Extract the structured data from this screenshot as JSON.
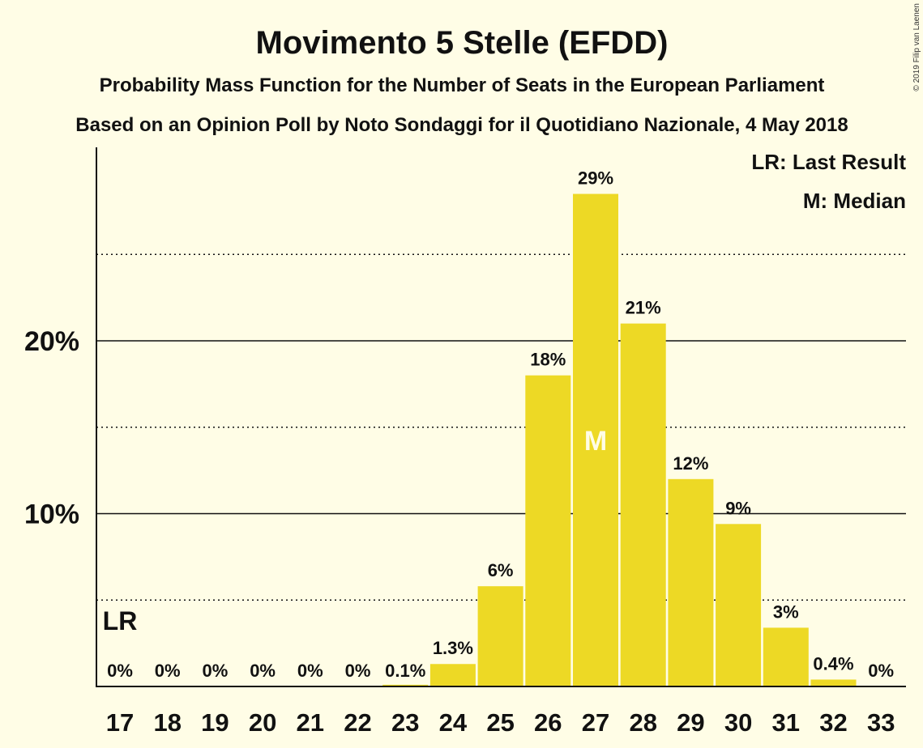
{
  "chart_data": {
    "type": "bar",
    "title": "Movimento 5 Stelle (EFDD)",
    "subtitle_1": "Probability Mass Function for the Number of Seats in the European Parliament",
    "subtitle_2": "Based on an Opinion Poll by Noto Sondaggi for il Quotidiano Nazionale, 4 May 2018",
    "copyright": "© 2019 Filip van Laenen",
    "legend": {
      "placement": "top-right",
      "entries": [
        "LR: Last Result",
        "M: Median"
      ]
    },
    "categories": [
      "17",
      "18",
      "19",
      "20",
      "21",
      "22",
      "23",
      "24",
      "25",
      "26",
      "27",
      "28",
      "29",
      "30",
      "31",
      "32",
      "33"
    ],
    "values": [
      0,
      0,
      0,
      0,
      0,
      0,
      0.1,
      1.3,
      5.8,
      18.0,
      28.5,
      21.0,
      12.0,
      9.4,
      3.4,
      0.4,
      0
    ],
    "data_labels": [
      "0%",
      "0%",
      "0%",
      "0%",
      "0%",
      "0%",
      "0.1%",
      "1.3%",
      "6%",
      "18%",
      "29%",
      "21%",
      "12%",
      "9%",
      "3%",
      "0.4%",
      "0%"
    ],
    "ylim": [
      0,
      31
    ],
    "y_ticks": [
      {
        "value": 10,
        "label": "10%"
      },
      {
        "value": 20,
        "label": "20%"
      }
    ],
    "y_minor_dotted": [
      5,
      15,
      25
    ],
    "grid": true,
    "bar_color": "#EDD925",
    "median_seat": "27",
    "median_label": "M",
    "last_result_seat": "17",
    "last_result_label": "LR"
  }
}
